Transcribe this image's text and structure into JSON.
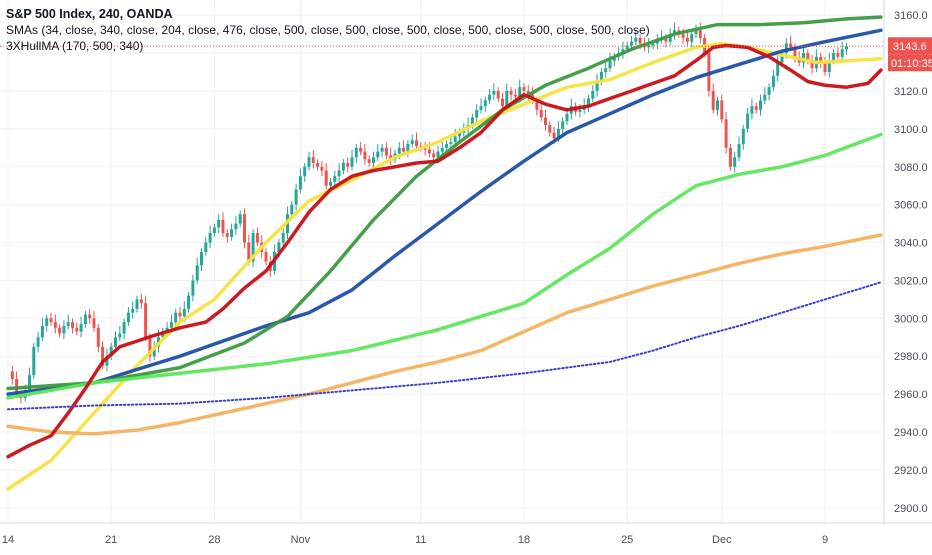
{
  "chart_data": {
    "type": "line",
    "title": "S&P 500 Index, 240, OANDA",
    "indicators": [
      "SMAs (34, close, 340, close, 204, close, 476, close, 500, close, 500, close, 500, close, 500, close, 500, close, 500, close)",
      "3XHullMA (170, 500, 340)"
    ],
    "y_axis": {
      "side": "right",
      "ylim": [
        2892,
        3168
      ],
      "ticks": [
        2900,
        2920,
        2940,
        2960,
        2980,
        3000,
        3020,
        3040,
        3060,
        3080,
        3100,
        3120,
        3140,
        3160
      ]
    },
    "x_axis": {
      "tick_labels": [
        "14",
        "21",
        "28",
        "Nov",
        "11",
        "18",
        "25",
        "Dec",
        "9"
      ],
      "tick_bars": [
        0,
        24,
        48,
        68,
        96,
        120,
        144,
        166,
        190
      ]
    },
    "grid": true,
    "last_price": {
      "value": 3143.6,
      "label": "3143.6",
      "countdown": "01:10:35"
    },
    "price_candles_close": [
      2972,
      2968,
      2960,
      2958,
      2962,
      2970,
      2985,
      2990,
      2996,
      3000,
      2998,
      2995,
      2992,
      2996,
      2998,
      2995,
      2993,
      2997,
      3002,
      3000,
      2995,
      2985,
      2975,
      2980,
      2985,
      2990,
      2992,
      2998,
      3003,
      3005,
      3010,
      3008,
      2990,
      2980,
      2985,
      2990,
      2993,
      2995,
      2998,
      3003,
      3001,
      3005,
      3012,
      3020,
      3028,
      3035,
      3040,
      3045,
      3048,
      3052,
      3045,
      3043,
      3047,
      3050,
      3055,
      3040,
      3030,
      3045,
      3040,
      3035,
      3030,
      3025,
      3035,
      3040,
      3045,
      3055,
      3060,
      3068,
      3075,
      3080,
      3085,
      3082,
      3080,
      3078,
      3070,
      3072,
      3075,
      3078,
      3082,
      3080,
      3085,
      3090,
      3088,
      3084,
      3082,
      3085,
      3088,
      3090,
      3086,
      3084,
      3087,
      3090,
      3088,
      3092,
      3094,
      3091,
      3090,
      3089,
      3087,
      3085,
      3088,
      3090,
      3092,
      3093,
      3096,
      3098,
      3100,
      3102,
      3106,
      3110,
      3112,
      3115,
      3118,
      3120,
      3116,
      3112,
      3120,
      3118,
      3117,
      3122,
      3120,
      3118,
      3115,
      3110,
      3106,
      3102,
      3098,
      3095,
      3100,
      3104,
      3108,
      3112,
      3109,
      3110,
      3112,
      3116,
      3120,
      3125,
      3130,
      3132,
      3136,
      3138,
      3140,
      3142,
      3144,
      3146,
      3148,
      3145,
      3143,
      3144,
      3145,
      3147,
      3148,
      3146,
      3150,
      3152,
      3150,
      3148,
      3146,
      3150,
      3152,
      3148,
      3140,
      3120,
      3110,
      3115,
      3105,
      3090,
      3080,
      3085,
      3092,
      3100,
      3108,
      3112,
      3110,
      3115,
      3118,
      3122,
      3128,
      3135,
      3140,
      3145,
      3143,
      3138,
      3135,
      3140,
      3136,
      3132,
      3138,
      3135,
      3130,
      3136,
      3140,
      3138,
      3142,
      3143.6
    ],
    "series": [
      {
        "name": "SMA 34",
        "color": "#f5e13d",
        "points": [
          [
            0,
            2910
          ],
          [
            10,
            2925
          ],
          [
            20,
            2950
          ],
          [
            30,
            2975
          ],
          [
            40,
            2998
          ],
          [
            48,
            3010
          ],
          [
            60,
            3040
          ],
          [
            70,
            3062
          ],
          [
            80,
            3073
          ],
          [
            90,
            3085
          ],
          [
            100,
            3093
          ],
          [
            110,
            3104
          ],
          [
            120,
            3113
          ],
          [
            130,
            3122
          ],
          [
            140,
            3126
          ],
          [
            150,
            3135
          ],
          [
            160,
            3143
          ],
          [
            166,
            3145
          ],
          [
            172,
            3143
          ],
          [
            180,
            3139
          ],
          [
            188,
            3135
          ],
          [
            196,
            3136
          ],
          [
            203,
            3137
          ]
        ]
      },
      {
        "name": "SMA 340",
        "color": "#1e4fa5",
        "points": [
          [
            0,
            2960
          ],
          [
            20,
            2966
          ],
          [
            40,
            2980
          ],
          [
            60,
            2996
          ],
          [
            70,
            3003
          ],
          [
            80,
            3015
          ],
          [
            90,
            3033
          ],
          [
            100,
            3050
          ],
          [
            110,
            3067
          ],
          [
            120,
            3083
          ],
          [
            130,
            3098
          ],
          [
            140,
            3108
          ],
          [
            150,
            3118
          ],
          [
            160,
            3127
          ],
          [
            170,
            3134
          ],
          [
            180,
            3141
          ],
          [
            190,
            3146
          ],
          [
            203,
            3152
          ]
        ]
      },
      {
        "name": "SMA 204",
        "color": "#3b9a40",
        "points": [
          [
            0,
            2963
          ],
          [
            20,
            2966
          ],
          [
            40,
            2974
          ],
          [
            55,
            2987
          ],
          [
            65,
            3001
          ],
          [
            75,
            3025
          ],
          [
            85,
            3052
          ],
          [
            95,
            3075
          ],
          [
            105,
            3093
          ],
          [
            115,
            3110
          ],
          [
            125,
            3123
          ],
          [
            135,
            3132
          ],
          [
            145,
            3142
          ],
          [
            155,
            3150
          ],
          [
            165,
            3155
          ],
          [
            175,
            3155
          ],
          [
            185,
            3156
          ],
          [
            195,
            3158
          ],
          [
            203,
            3159
          ]
        ]
      },
      {
        "name": "SMA 476",
        "color": "#5ce65a",
        "points": [
          [
            0,
            2958
          ],
          [
            20,
            2966
          ],
          [
            40,
            2971
          ],
          [
            60,
            2976
          ],
          [
            80,
            2983
          ],
          [
            100,
            2994
          ],
          [
            120,
            3008
          ],
          [
            130,
            3023
          ],
          [
            140,
            3037
          ],
          [
            150,
            3055
          ],
          [
            160,
            3070
          ],
          [
            170,
            3076
          ],
          [
            180,
            3080
          ],
          [
            190,
            3086
          ],
          [
            203,
            3097
          ]
        ]
      },
      {
        "name": "SMA 500",
        "color": "#f4b15f",
        "points": [
          [
            0,
            2943
          ],
          [
            10,
            2940
          ],
          [
            20,
            2939
          ],
          [
            30,
            2941
          ],
          [
            40,
            2945
          ],
          [
            50,
            2950
          ],
          [
            60,
            2955
          ],
          [
            70,
            2960
          ],
          [
            80,
            2966
          ],
          [
            90,
            2972
          ],
          [
            100,
            2977
          ],
          [
            110,
            2983
          ],
          [
            120,
            2993
          ],
          [
            130,
            3003
          ],
          [
            140,
            3010
          ],
          [
            150,
            3017
          ],
          [
            160,
            3023
          ],
          [
            170,
            3029
          ],
          [
            180,
            3034
          ],
          [
            190,
            3038
          ],
          [
            203,
            3044
          ]
        ]
      },
      {
        "name": "3XHullMA",
        "color": "#c80f14",
        "points": [
          [
            0,
            2927
          ],
          [
            5,
            2933
          ],
          [
            10,
            2938
          ],
          [
            14,
            2950
          ],
          [
            18,
            2963
          ],
          [
            22,
            2977
          ],
          [
            26,
            2985
          ],
          [
            30,
            2988
          ],
          [
            34,
            2991
          ],
          [
            40,
            2995
          ],
          [
            46,
            2998
          ],
          [
            50,
            3005
          ],
          [
            55,
            3016
          ],
          [
            60,
            3025
          ],
          [
            65,
            3040
          ],
          [
            70,
            3056
          ],
          [
            75,
            3068
          ],
          [
            80,
            3075
          ],
          [
            85,
            3078
          ],
          [
            90,
            3080
          ],
          [
            95,
            3082
          ],
          [
            100,
            3083
          ],
          [
            105,
            3090
          ],
          [
            110,
            3098
          ],
          [
            115,
            3110
          ],
          [
            120,
            3118
          ],
          [
            125,
            3113
          ],
          [
            130,
            3110
          ],
          [
            135,
            3112
          ],
          [
            140,
            3116
          ],
          [
            145,
            3120
          ],
          [
            150,
            3124
          ],
          [
            155,
            3128
          ],
          [
            160,
            3136
          ],
          [
            164,
            3143
          ],
          [
            167,
            3144
          ],
          [
            172,
            3143
          ],
          [
            177,
            3138
          ],
          [
            182,
            3131
          ],
          [
            186,
            3125
          ],
          [
            190,
            3123
          ],
          [
            195,
            3122
          ],
          [
            200,
            3124
          ],
          [
            203,
            3131
          ]
        ]
      },
      {
        "name": "Dotted MA",
        "color": "#3b3ec9",
        "style": "dotted",
        "points": [
          [
            0,
            2952
          ],
          [
            20,
            2954
          ],
          [
            40,
            2955
          ],
          [
            60,
            2958
          ],
          [
            80,
            2962
          ],
          [
            100,
            2966
          ],
          [
            120,
            2971
          ],
          [
            140,
            2977
          ],
          [
            150,
            2983
          ],
          [
            160,
            2990
          ],
          [
            170,
            2996
          ],
          [
            180,
            3003
          ],
          [
            190,
            3010
          ],
          [
            203,
            3019
          ]
        ]
      }
    ]
  }
}
